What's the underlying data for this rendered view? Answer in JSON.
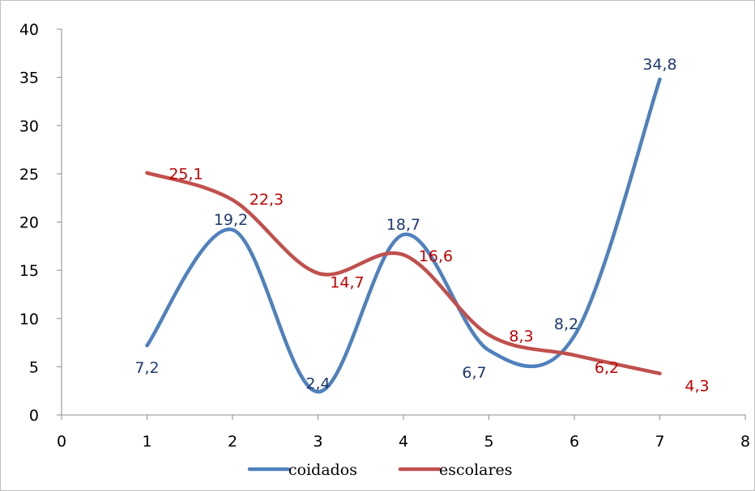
{
  "chart_data": {
    "type": "line",
    "title": "",
    "xlabel": "",
    "ylabel": "",
    "xlim": [
      0,
      8
    ],
    "ylim": [
      0,
      40
    ],
    "x_ticks": [
      "0",
      "1",
      "2",
      "3",
      "4",
      "5",
      "6",
      "7",
      "8"
    ],
    "y_ticks": [
      "0",
      "5",
      "10",
      "15",
      "20",
      "25",
      "30",
      "35",
      "40"
    ],
    "grid": false,
    "legend_position": "bottom",
    "smoothed": true,
    "series": [
      {
        "name": "coidados",
        "color": "#4f81bd",
        "label_color": "#1f3a6e",
        "x": [
          1,
          2,
          3,
          4,
          5,
          6,
          7
        ],
        "values": [
          7.2,
          19.2,
          2.4,
          18.7,
          6.7,
          8.2,
          34.8
        ],
        "labels": [
          "7,2",
          "19,2",
          "2,4",
          "18,7",
          "6,7",
          "8,2",
          "34,8"
        ]
      },
      {
        "name": "escolares",
        "color": "#c0504d",
        "label_color": "#c00000",
        "x": [
          1,
          2,
          3,
          4,
          5,
          6,
          7
        ],
        "values": [
          25.1,
          22.3,
          14.7,
          16.6,
          8.3,
          6.2,
          4.3
        ],
        "labels": [
          "25,1",
          "22,3",
          "14,7",
          "16,6",
          "8,3",
          "6,2",
          "4,3"
        ]
      }
    ]
  }
}
